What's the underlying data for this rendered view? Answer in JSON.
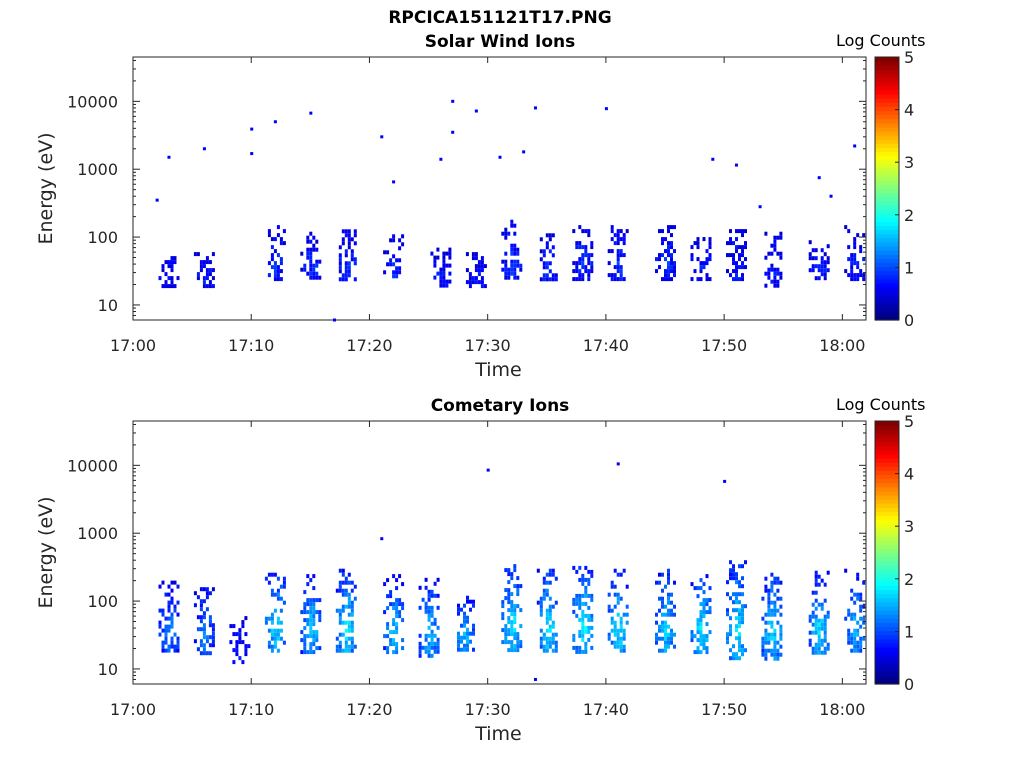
{
  "figure_title": "RPCICA151121T17.PNG",
  "colors": {
    "colormap": "jet",
    "axis": "#262626",
    "background": "#ffffff"
  },
  "chart_data": [
    {
      "type": "heatmap",
      "title": "Solar Wind Ions",
      "xlabel": "Time",
      "ylabel": "Energy (eV)",
      "x_ticks": [
        "17:00",
        "17:10",
        "17:20",
        "17:30",
        "17:40",
        "17:50",
        "18:00"
      ],
      "x_range": [
        "17:00",
        "18:02"
      ],
      "y_scale": "log",
      "y_ticks": [
        10,
        100,
        1000,
        10000
      ],
      "y_range": [
        6,
        45000
      ],
      "colorbar": {
        "label": "Log Counts",
        "range": [
          0,
          5
        ],
        "ticks": [
          0,
          1,
          2,
          3,
          4,
          5
        ]
      },
      "bursts": [
        {
          "t": "17:03",
          "e_lo": 18,
          "e_hi": 60,
          "level": 0.5
        },
        {
          "t": "17:06",
          "e_lo": 20,
          "e_hi": 60,
          "level": 0.5
        },
        {
          "t": "17:12",
          "e_lo": 25,
          "e_hi": 150,
          "level": 0.6
        },
        {
          "t": "17:15",
          "e_lo": 25,
          "e_hi": 120,
          "level": 0.6
        },
        {
          "t": "17:18",
          "e_lo": 25,
          "e_hi": 130,
          "level": 0.6
        },
        {
          "t": "17:22",
          "e_lo": 25,
          "e_hi": 110,
          "level": 0.6
        },
        {
          "t": "17:26",
          "e_lo": 20,
          "e_hi": 70,
          "level": 0.5
        },
        {
          "t": "17:29",
          "e_lo": 20,
          "e_hi": 60,
          "level": 0.5
        },
        {
          "t": "17:32",
          "e_lo": 25,
          "e_hi": 180,
          "level": 0.6
        },
        {
          "t": "17:35",
          "e_lo": 25,
          "e_hi": 130,
          "level": 0.6
        },
        {
          "t": "17:38",
          "e_lo": 25,
          "e_hi": 150,
          "level": 0.6
        },
        {
          "t": "17:41",
          "e_lo": 25,
          "e_hi": 150,
          "level": 0.6
        },
        {
          "t": "17:45",
          "e_lo": 25,
          "e_hi": 150,
          "level": 0.6
        },
        {
          "t": "17:48",
          "e_lo": 25,
          "e_hi": 100,
          "level": 0.5
        },
        {
          "t": "17:51",
          "e_lo": 25,
          "e_hi": 150,
          "level": 0.5
        },
        {
          "t": "17:54",
          "e_lo": 20,
          "e_hi": 120,
          "level": 0.5
        },
        {
          "t": "17:58",
          "e_lo": 25,
          "e_hi": 90,
          "level": 0.5
        },
        {
          "t": "18:01",
          "e_lo": 25,
          "e_hi": 150,
          "level": 0.5
        }
      ],
      "sparse_points": [
        {
          "t": "17:03",
          "e": 1500
        },
        {
          "t": "17:06",
          "e": 2000
        },
        {
          "t": "17:10",
          "e": 3900
        },
        {
          "t": "17:10",
          "e": 1700
        },
        {
          "t": "17:12",
          "e": 5000
        },
        {
          "t": "17:15",
          "e": 6700
        },
        {
          "t": "17:21",
          "e": 3000
        },
        {
          "t": "17:22",
          "e": 650
        },
        {
          "t": "17:26",
          "e": 1400
        },
        {
          "t": "17:27",
          "e": 10000
        },
        {
          "t": "17:27",
          "e": 3500
        },
        {
          "t": "17:29",
          "e": 7200
        },
        {
          "t": "17:31",
          "e": 1500
        },
        {
          "t": "17:33",
          "e": 1800
        },
        {
          "t": "17:34",
          "e": 8000
        },
        {
          "t": "17:40",
          "e": 7800
        },
        {
          "t": "17:49",
          "e": 1400
        },
        {
          "t": "17:51",
          "e": 1150
        },
        {
          "t": "17:58",
          "e": 750
        },
        {
          "t": "18:01",
          "e": 2200
        },
        {
          "t": "17:02",
          "e": 350
        },
        {
          "t": "17:53",
          "e": 280
        },
        {
          "t": "17:59",
          "e": 400
        },
        {
          "t": "17:17",
          "e": 6
        }
      ]
    },
    {
      "type": "heatmap",
      "title": "Cometary Ions",
      "xlabel": "Time",
      "ylabel": "Energy (eV)",
      "x_ticks": [
        "17:00",
        "17:10",
        "17:20",
        "17:30",
        "17:40",
        "17:50",
        "18:00"
      ],
      "x_range": [
        "17:00",
        "18:02"
      ],
      "y_scale": "log",
      "y_ticks": [
        10,
        100,
        1000,
        10000
      ],
      "y_range": [
        6,
        45000
      ],
      "colorbar": {
        "label": "Log Counts",
        "range": [
          0,
          5
        ],
        "ticks": [
          0,
          1,
          2,
          3,
          4,
          5
        ]
      },
      "bursts": [
        {
          "t": "17:03",
          "e_lo": 18,
          "e_hi": 200,
          "level": 1.0
        },
        {
          "t": "17:06",
          "e_lo": 18,
          "e_hi": 160,
          "level": 1.0
        },
        {
          "t": "17:09",
          "e_lo": 12,
          "e_hi": 60,
          "level": 0.5
        },
        {
          "t": "17:12",
          "e_lo": 18,
          "e_hi": 300,
          "level": 1.5
        },
        {
          "t": "17:15",
          "e_lo": 18,
          "e_hi": 250,
          "level": 1.4
        },
        {
          "t": "17:18",
          "e_lo": 18,
          "e_hi": 300,
          "level": 1.6
        },
        {
          "t": "17:22",
          "e_lo": 18,
          "e_hi": 250,
          "level": 1.4
        },
        {
          "t": "17:25",
          "e_lo": 15,
          "e_hi": 220,
          "level": 1.3
        },
        {
          "t": "17:28",
          "e_lo": 18,
          "e_hi": 120,
          "level": 1.3
        },
        {
          "t": "17:32",
          "e_lo": 18,
          "e_hi": 350,
          "level": 1.6
        },
        {
          "t": "17:35",
          "e_lo": 18,
          "e_hi": 300,
          "level": 1.6
        },
        {
          "t": "17:38",
          "e_lo": 18,
          "e_hi": 330,
          "level": 1.7
        },
        {
          "t": "17:41",
          "e_lo": 18,
          "e_hi": 300,
          "level": 1.6
        },
        {
          "t": "17:45",
          "e_lo": 18,
          "e_hi": 300,
          "level": 1.5
        },
        {
          "t": "17:48",
          "e_lo": 18,
          "e_hi": 250,
          "level": 1.6
        },
        {
          "t": "17:51",
          "e_lo": 15,
          "e_hi": 400,
          "level": 1.6
        },
        {
          "t": "17:54",
          "e_lo": 15,
          "e_hi": 300,
          "level": 1.5
        },
        {
          "t": "17:58",
          "e_lo": 18,
          "e_hi": 280,
          "level": 1.5
        },
        {
          "t": "18:01",
          "e_lo": 18,
          "e_hi": 300,
          "level": 1.3
        }
      ],
      "sparse_points": [
        {
          "t": "17:30",
          "e": 8500
        },
        {
          "t": "17:41",
          "e": 10500
        },
        {
          "t": "17:50",
          "e": 5800
        },
        {
          "t": "17:21",
          "e": 830
        },
        {
          "t": "17:34",
          "e": 7
        }
      ]
    }
  ]
}
